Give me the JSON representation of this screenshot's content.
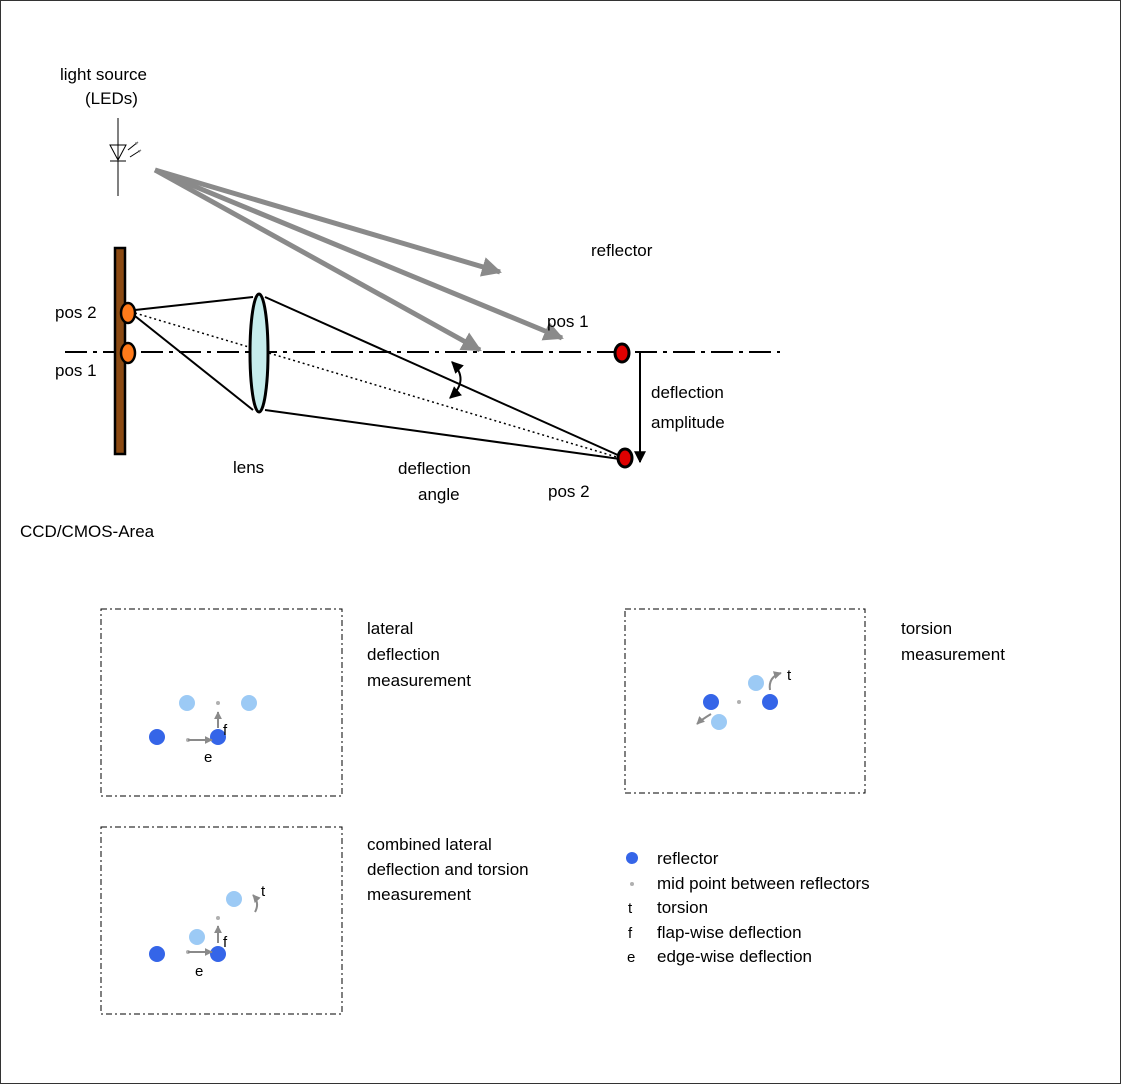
{
  "labels": {
    "light_source_line1": "light source",
    "light_source_line2": "(LEDs)",
    "reflector": "reflector",
    "pos1_reflector": "pos 1",
    "pos2_reflector": "pos 2",
    "pos2_sensor": "pos 2",
    "pos1_sensor": "pos 1",
    "deflection_amplitude_line1": "deflection",
    "deflection_amplitude_line2": "amplitude",
    "lens": "lens",
    "deflection_angle_line1": "deflection",
    "deflection_angle_line2": "angle",
    "sensor_area": "CCD/CMOS-Area"
  },
  "panels": {
    "lateral": {
      "title_lines": [
        "lateral",
        "deflection",
        "measurement"
      ],
      "flap_letter": "f",
      "edge_letter": "e"
    },
    "torsion": {
      "title_lines": [
        "torsion",
        "measurement"
      ],
      "torsion_letter": "t"
    },
    "combined": {
      "title_lines": [
        "combined lateral",
        "deflection and torsion",
        "measurement"
      ],
      "torsion_letter": "t",
      "flap_letter": "f",
      "edge_letter": "e"
    }
  },
  "legend": [
    {
      "symbol": "dot",
      "text": "reflector"
    },
    {
      "symbol": "small-dot",
      "text": "mid point between reflectors"
    },
    {
      "symbol": "t",
      "text": "torsion"
    },
    {
      "symbol": "f",
      "text": "flap-wise deflection"
    },
    {
      "symbol": "e",
      "text": "edge-wise deflection"
    }
  ],
  "colors": {
    "reflector_dark": "#3565e8",
    "reflector_light": "#9ccaf5",
    "midpoint": "#b0b0b0",
    "beam_gray": "#8a8a8a",
    "sensor_bar": "#8b4a12",
    "sensor_dot": "#ff7a1a",
    "reflector_red": "#e00000",
    "lens_fill": "#c6ecec"
  }
}
